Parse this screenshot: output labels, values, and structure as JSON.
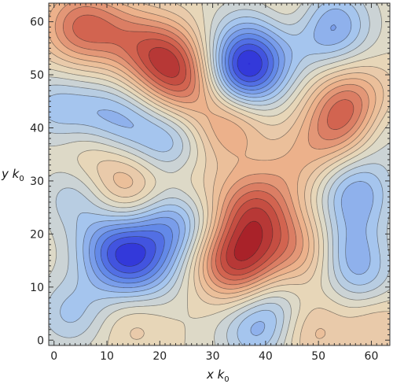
{
  "chart_data": {
    "type": "contour",
    "title": "",
    "xlabel_main": "x k",
    "xlabel_sub": "0",
    "ylabel_main": "y k",
    "ylabel_sub": "0",
    "xlim": [
      -1,
      63.5
    ],
    "ylim": [
      -1,
      63.5
    ],
    "xticks": [
      0,
      10,
      20,
      30,
      40,
      50,
      60
    ],
    "yticks": [
      0,
      10,
      20,
      30,
      40,
      50,
      60
    ],
    "colormap": [
      "#2b2bd8",
      "#5f86e8",
      "#a9c8ee",
      "#e6dcc0",
      "#edb58e",
      "#d1604d",
      "#a21723"
    ],
    "value_range": [
      -1,
      1
    ],
    "contour_levels": 20,
    "features": [
      {
        "x": 5,
        "y": 59,
        "sign": "max",
        "amp": 0.75
      },
      {
        "x": 12,
        "y": 58,
        "sign": "max",
        "amp": 0.25
      },
      {
        "x": 18,
        "y": 55,
        "sign": "max",
        "amp": 0.45
      },
      {
        "x": 23,
        "y": 51,
        "sign": "max",
        "amp": 0.85
      },
      {
        "x": 26,
        "y": 47,
        "sign": "max",
        "amp": 0.2
      },
      {
        "x": 33,
        "y": 41,
        "sign": "max",
        "amp": 0.6
      },
      {
        "x": 37,
        "y": 53,
        "sign": "min",
        "amp": 1.0
      },
      {
        "x": 35,
        "y": 49,
        "sign": "min",
        "amp": 0.5
      },
      {
        "x": 52,
        "y": 59,
        "sign": "min",
        "amp": 0.75
      },
      {
        "x": 46,
        "y": 61,
        "sign": "max",
        "amp": 0.3
      },
      {
        "x": 56,
        "y": 44,
        "sign": "max",
        "amp": 0.8
      },
      {
        "x": 52,
        "y": 38,
        "sign": "max",
        "amp": 0.35
      },
      {
        "x": 46,
        "y": 33,
        "sign": "max",
        "amp": 0.25
      },
      {
        "x": 0,
        "y": 44,
        "sign": "min",
        "amp": 0.4
      },
      {
        "x": 8,
        "y": 43,
        "sign": "min",
        "amp": 0.3
      },
      {
        "x": 14,
        "y": 41,
        "sign": "min",
        "amp": 0.4
      },
      {
        "x": 22,
        "y": 37,
        "sign": "min",
        "amp": 0.5
      },
      {
        "x": 7,
        "y": 35,
        "sign": "max",
        "amp": 0.2
      },
      {
        "x": 14,
        "y": 29,
        "sign": "max",
        "amp": 0.45
      },
      {
        "x": 4,
        "y": 27,
        "sign": "min",
        "amp": 0.35
      },
      {
        "x": 23,
        "y": 22,
        "sign": "min",
        "amp": 0.6
      },
      {
        "x": 15,
        "y": 15,
        "sign": "min",
        "amp": 1.0
      },
      {
        "x": 10,
        "y": 18,
        "sign": "min",
        "amp": 0.35
      },
      {
        "x": 38,
        "y": 24,
        "sign": "max",
        "amp": 0.9
      },
      {
        "x": 36,
        "y": 14,
        "sign": "max",
        "amp": 0.8
      },
      {
        "x": 31,
        "y": 15,
        "sign": "max",
        "amp": 0.3
      },
      {
        "x": 48,
        "y": 17,
        "sign": "max",
        "amp": 0.5
      },
      {
        "x": 57,
        "y": 28,
        "sign": "min",
        "amp": 0.6
      },
      {
        "x": 55,
        "y": 17,
        "sign": "min",
        "amp": 0.55
      },
      {
        "x": 59,
        "y": 11,
        "sign": "min",
        "amp": 0.3
      },
      {
        "x": 42,
        "y": 7,
        "sign": "min",
        "amp": 0.35
      },
      {
        "x": 48,
        "y": 2,
        "sign": "max",
        "amp": 0.35
      },
      {
        "x": 38,
        "y": 2,
        "sign": "min",
        "amp": 0.5
      },
      {
        "x": 3,
        "y": 5,
        "sign": "min",
        "amp": 0.4
      },
      {
        "x": 15,
        "y": 4,
        "sign": "max",
        "amp": 0.25
      },
      {
        "x": 61,
        "y": 3,
        "sign": "max",
        "amp": 0.3
      },
      {
        "x": 62,
        "y": 40,
        "sign": "min",
        "amp": 0.3
      },
      {
        "x": 25,
        "y": 30,
        "sign": "max",
        "amp": 0.2
      }
    ]
  }
}
